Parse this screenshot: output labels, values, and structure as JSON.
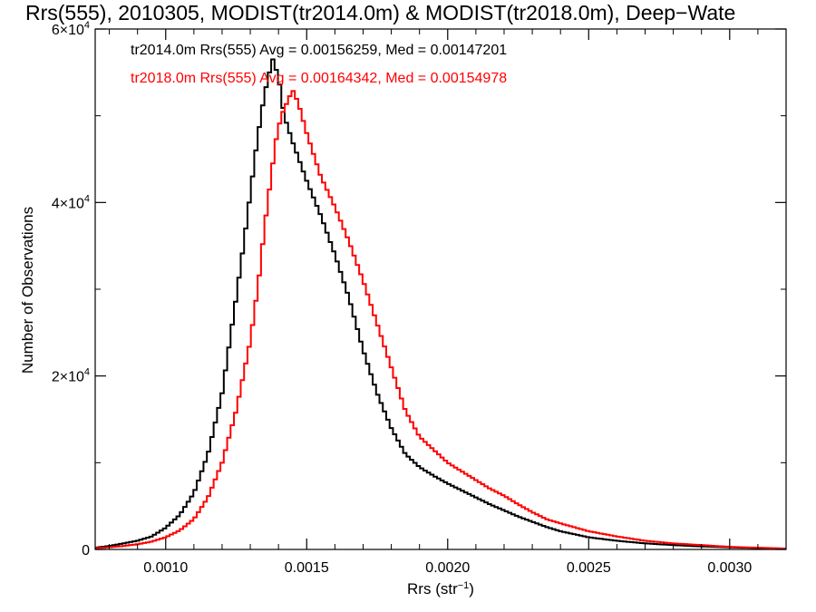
{
  "chart_data": {
    "type": "line",
    "title": "Rrs(555), 2010305, MODIST(tr2014.0m) & MODIST(tr2018.0m), Deep−Wate",
    "xlabel_main": "Rrs (str",
    "xlabel_sup": "−1",
    "xlabel_end": ")",
    "ylabel": "Number of Observations",
    "xlim": [
      0.00075,
      0.0032
    ],
    "ylim": [
      0,
      60000
    ],
    "x_ticks": [
      {
        "value": 0.001,
        "label": "0.0010"
      },
      {
        "value": 0.0015,
        "label": "0.0015"
      },
      {
        "value": 0.002,
        "label": "0.0020"
      },
      {
        "value": 0.0025,
        "label": "0.0025"
      },
      {
        "value": 0.003,
        "label": "0.0030"
      }
    ],
    "y_ticks": [
      {
        "value": 0,
        "base": "0",
        "sup": ""
      },
      {
        "value": 20000,
        "base": "2×10",
        "sup": "4"
      },
      {
        "value": 40000,
        "base": "4×10",
        "sup": "4"
      },
      {
        "value": 60000,
        "base": "6×10",
        "sup": "4"
      }
    ],
    "legend": [
      {
        "text": "tr2014.0m Rrs(555) Avg = 0.00156259, Med = 0.00147201",
        "color": "#000000"
      },
      {
        "text": "tr2018.0m Rrs(555) Avg = 0.00164342, Med = 0.00154978",
        "color": "#ff0000"
      }
    ],
    "series": [
      {
        "color": "#000000",
        "x": [
          0.00075,
          0.0008,
          0.00085,
          0.0009,
          0.00095,
          0.001,
          0.00105,
          0.0011,
          0.00115,
          0.0012,
          0.00125,
          0.00128,
          0.0013,
          0.00132,
          0.00134,
          0.00136,
          0.00138,
          0.0014,
          0.00142,
          0.00145,
          0.0015,
          0.00155,
          0.0016,
          0.00165,
          0.0017,
          0.00175,
          0.0018,
          0.00185,
          0.0019,
          0.00195,
          0.002,
          0.00205,
          0.0021,
          0.00215,
          0.0022,
          0.00225,
          0.0023,
          0.00235,
          0.0024,
          0.0025,
          0.0026,
          0.0027,
          0.0028,
          0.0029,
          0.003,
          0.0031,
          0.0032
        ],
        "y": [
          200,
          400,
          700,
          1000,
          1500,
          2500,
          4000,
          6500,
          11000,
          18000,
          29000,
          36000,
          41000,
          46000,
          50500,
          54000,
          56500,
          54500,
          50000,
          47000,
          42500,
          38500,
          34000,
          29000,
          23000,
          18000,
          14000,
          11000,
          9500,
          8500,
          7600,
          6800,
          6000,
          5200,
          4500,
          3800,
          3200,
          2600,
          2100,
          1400,
          1000,
          700,
          500,
          350,
          250,
          150,
          100
        ]
      },
      {
        "color": "#ff0000",
        "x": [
          0.00075,
          0.0008,
          0.00085,
          0.0009,
          0.00095,
          0.001,
          0.00105,
          0.0011,
          0.00115,
          0.0012,
          0.00125,
          0.0013,
          0.00133,
          0.00135,
          0.00137,
          0.00139,
          0.00141,
          0.00143,
          0.00145,
          0.00147,
          0.0015,
          0.00155,
          0.0016,
          0.00165,
          0.0017,
          0.00175,
          0.0018,
          0.00185,
          0.0019,
          0.00195,
          0.002,
          0.00205,
          0.0021,
          0.00215,
          0.0022,
          0.00225,
          0.0023,
          0.00235,
          0.0024,
          0.0025,
          0.0026,
          0.0027,
          0.0028,
          0.0029,
          0.003,
          0.0031,
          0.0032
        ],
        "y": [
          150,
          250,
          400,
          600,
          900,
          1400,
          2200,
          3500,
          6000,
          10000,
          16000,
          24000,
          31000,
          37000,
          42000,
          47000,
          50000,
          51500,
          53000,
          51500,
          48000,
          43000,
          39500,
          35500,
          31000,
          26000,
          21000,
          16000,
          13000,
          11500,
          10000,
          9000,
          8000,
          7000,
          6200,
          5200,
          4300,
          3500,
          3000,
          2100,
          1500,
          1000,
          700,
          500,
          300,
          200,
          100
        ]
      }
    ]
  }
}
